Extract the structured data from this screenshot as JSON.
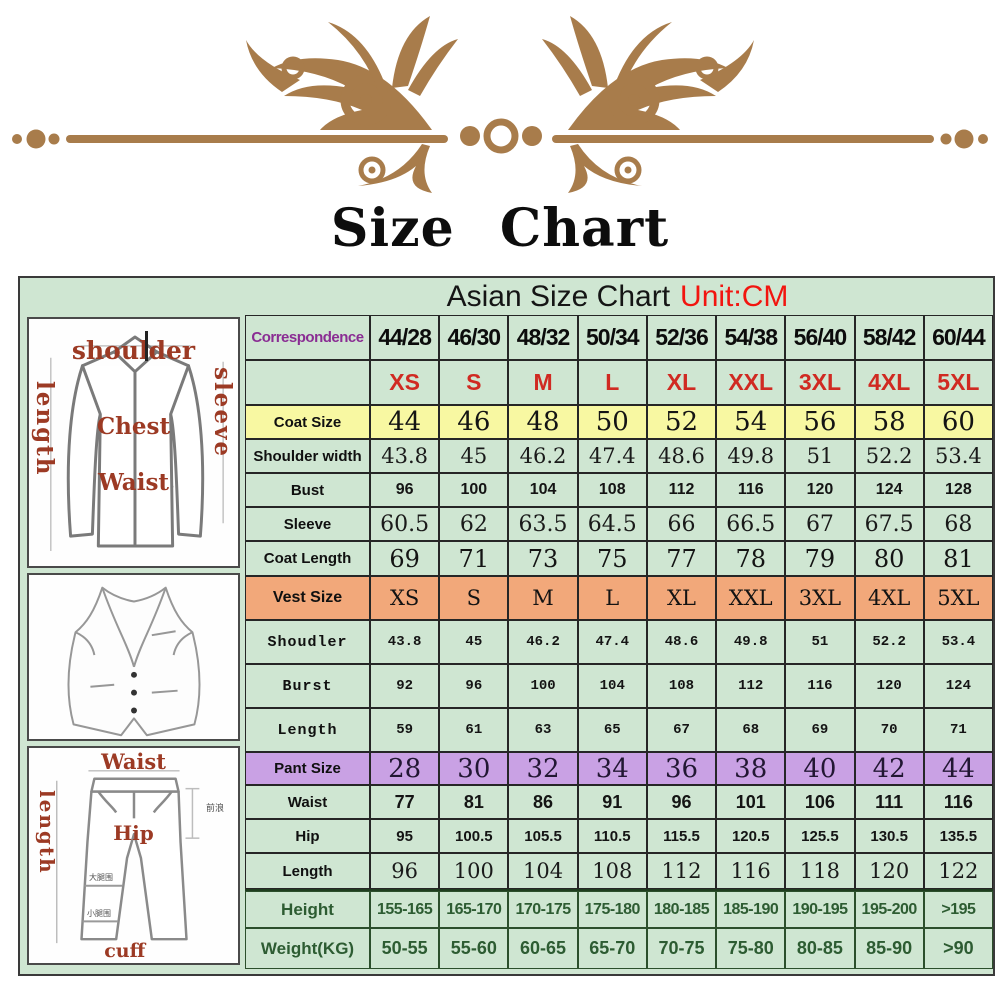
{
  "page_title": "Size Chart",
  "header": {
    "title": "Asian Size Chart",
    "unit_label": "Unit:CM"
  },
  "table": {
    "correspondence": {
      "label": "Correspondence",
      "values": [
        "44/28",
        "46/30",
        "48/32",
        "50/34",
        "52/36",
        "54/38",
        "56/40",
        "58/42",
        "60/44"
      ]
    },
    "sizes": {
      "label": "",
      "values": [
        "XS",
        "S",
        "M",
        "L",
        "XL",
        "XXL",
        "3XL",
        "4XL",
        "5XL"
      ]
    },
    "coat_rows": [
      {
        "label": "Coat Size",
        "values": [
          "44",
          "46",
          "48",
          "50",
          "52",
          "54",
          "56",
          "58",
          "60"
        ]
      },
      {
        "label": "Shoulder width",
        "values": [
          "43.8",
          "45",
          "46.2",
          "47.4",
          "48.6",
          "49.8",
          "51",
          "52.2",
          "53.4"
        ]
      },
      {
        "label": "Bust",
        "values": [
          "96",
          "100",
          "104",
          "108",
          "112",
          "116",
          "120",
          "124",
          "128"
        ]
      },
      {
        "label": "Sleeve",
        "values": [
          "60.5",
          "62",
          "63.5",
          "64.5",
          "66",
          "66.5",
          "67",
          "67.5",
          "68"
        ]
      },
      {
        "label": "Coat Length",
        "values": [
          "69",
          "71",
          "73",
          "75",
          "77",
          "78",
          "79",
          "80",
          "81"
        ]
      }
    ],
    "vest_rows": [
      {
        "label": "Vest Size",
        "values": [
          "XS",
          "S",
          "M",
          "L",
          "XL",
          "XXL",
          "3XL",
          "4XL",
          "5XL"
        ]
      },
      {
        "label": "Shoudler",
        "values": [
          "43.8",
          "45",
          "46.2",
          "47.4",
          "48.6",
          "49.8",
          "51",
          "52.2",
          "53.4"
        ]
      },
      {
        "label": "Burst",
        "values": [
          "92",
          "96",
          "100",
          "104",
          "108",
          "112",
          "116",
          "120",
          "124"
        ]
      },
      {
        "label": "Length",
        "values": [
          "59",
          "61",
          "63",
          "65",
          "67",
          "68",
          "69",
          "70",
          "71"
        ]
      }
    ],
    "pant_rows": [
      {
        "label": "Pant Size",
        "values": [
          "28",
          "30",
          "32",
          "34",
          "36",
          "38",
          "40",
          "42",
          "44"
        ]
      },
      {
        "label": "Waist",
        "values": [
          "77",
          "81",
          "86",
          "91",
          "96",
          "101",
          "106",
          "111",
          "116"
        ]
      },
      {
        "label": "Hip",
        "values": [
          "95",
          "100.5",
          "105.5",
          "110.5",
          "115.5",
          "120.5",
          "125.5",
          "130.5",
          "135.5"
        ]
      },
      {
        "label": "Length",
        "values": [
          "96",
          "100",
          "104",
          "108",
          "112",
          "116",
          "118",
          "120",
          "122"
        ]
      }
    ],
    "body_rows": [
      {
        "label": "Height",
        "values": [
          "155-165",
          "165-170",
          "170-175",
          "175-180",
          "180-185",
          "185-190",
          "190-195",
          "195-200",
          ">195"
        ]
      },
      {
        "label": "Weight(KG)",
        "values": [
          "50-55",
          "55-60",
          "60-65",
          "65-70",
          "70-75",
          "75-80",
          "80-85",
          "85-90",
          ">90"
        ]
      }
    ]
  },
  "diagrams": {
    "jacket": {
      "shoulder": "shoulder",
      "length": "length",
      "sleeve": "sleeve",
      "chest": "Chest",
      "waist": "Waist"
    },
    "pants": {
      "waist": "Waist",
      "length": "length",
      "hip": "Hip",
      "cuff": "cuff",
      "front_rise": "前浪",
      "thigh": "大腿围",
      "calf": "小腿围"
    }
  },
  "colors": {
    "table_green": "#cfe6d2",
    "coat_yellow": "#f8f8a2",
    "vest_orange": "#f2a87a",
    "pant_purple": "#c9a1e4",
    "size_red": "#d02a22",
    "unit_red": "#f2150f",
    "correspondence_purple": "#8a2d93",
    "body_green_text": "#2d5c32",
    "diagram_label_red": "#9c3a24",
    "ornament_brown": "#a87c4b"
  }
}
